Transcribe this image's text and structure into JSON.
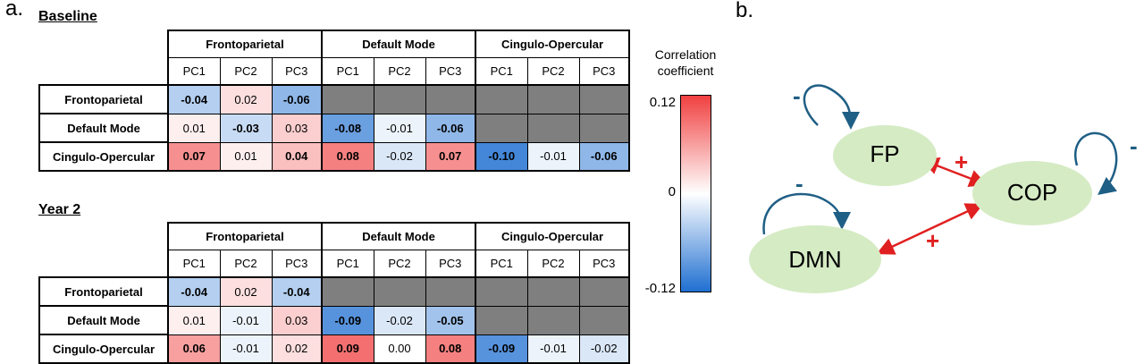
{
  "panel_a": {
    "label": "a.",
    "networks": [
      "Frontoparietal",
      "Default Mode",
      "Cingulo-Opercular"
    ],
    "pcs": [
      "PC1",
      "PC2",
      "PC3"
    ],
    "tables": [
      {
        "title": "Baseline",
        "rows": [
          {
            "label": "Frontoparietal",
            "cells": [
              "-0.04",
              "0.02",
              "-0.06"
            ]
          },
          {
            "label": "Default Mode",
            "cells": [
              "0.01",
              "-0.03",
              "0.03",
              "-0.08",
              "-0.01",
              "-0.06"
            ]
          },
          {
            "label": "Cingulo-Opercular",
            "cells": [
              "0.07",
              "0.01",
              "0.04",
              "0.08",
              "-0.02",
              "0.07",
              "-0.10",
              "-0.01",
              "-0.06"
            ]
          }
        ],
        "bold": [
          [
            true,
            false,
            true
          ],
          [
            false,
            true,
            false,
            true,
            false,
            true
          ],
          [
            true,
            false,
            true,
            true,
            false,
            true,
            true,
            false,
            true
          ]
        ]
      },
      {
        "title": "Year 2",
        "rows": [
          {
            "label": "Frontoparietal",
            "cells": [
              "-0.04",
              "0.02",
              "-0.04"
            ]
          },
          {
            "label": "Default Mode",
            "cells": [
              "0.01",
              "-0.01",
              "0.03",
              "-0.09",
              "-0.02",
              "-0.05"
            ]
          },
          {
            "label": "Cingulo-Opercular",
            "cells": [
              "0.06",
              "-0.01",
              "0.02",
              "0.09",
              "0.00",
              "0.08",
              "-0.09",
              "-0.01",
              "-0.02"
            ]
          }
        ],
        "bold": [
          [
            true,
            false,
            true
          ],
          [
            false,
            false,
            false,
            true,
            false,
            true
          ],
          [
            true,
            false,
            false,
            true,
            false,
            true,
            true,
            false,
            false
          ]
        ]
      }
    ],
    "colorbar": {
      "title_line1": "Correlation",
      "title_line2": "coefficient",
      "max_label": "0.12",
      "mid_label": "0",
      "min_label": "-0.12",
      "max": 0.12,
      "min": -0.12,
      "color_max": "#f04040",
      "color_mid": "#ffffff",
      "color_min": "#1f6fd1"
    }
  },
  "panel_b": {
    "label": "b.",
    "nodes": {
      "fp": "FP",
      "cop": "COP",
      "dmn": "DMN"
    },
    "self_loop_sign": "-",
    "edge_sign": "+",
    "node_color": "#d5ebc4",
    "loop_color": "#1f5f85",
    "edge_color": "#e02020"
  }
}
